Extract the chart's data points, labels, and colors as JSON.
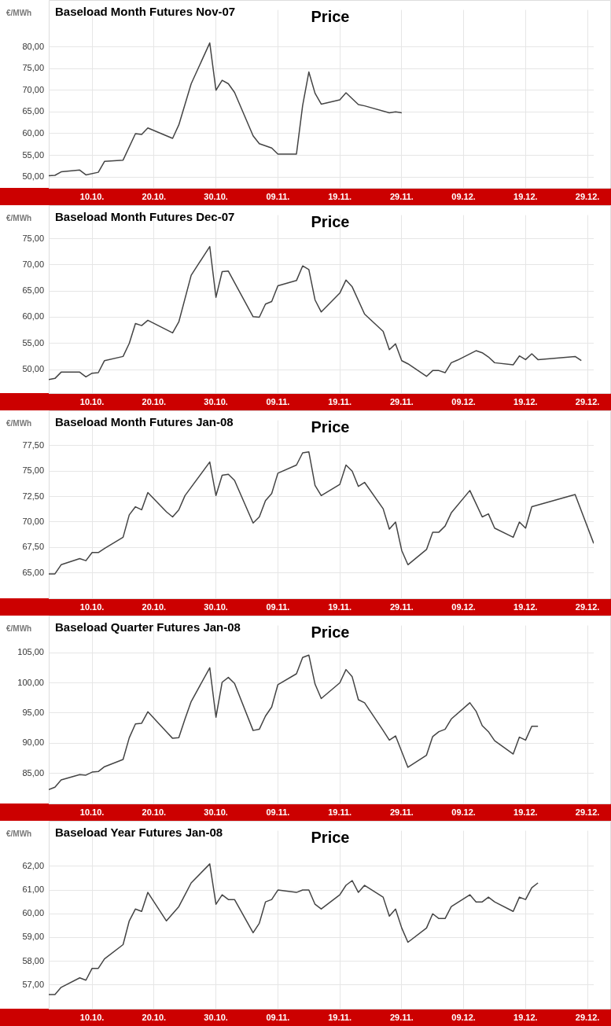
{
  "chart_data": [
    {
      "type": "line",
      "title": "Baseload Month Futures Nov-07",
      "subtitle": "Price",
      "ylabel": "€/MWh",
      "color": "#444444",
      "grid": true,
      "marker": "none",
      "line_style": "solid",
      "xlim": [
        "--10-03",
        "--12-30"
      ],
      "xticks": [
        {
          "value": "--10-10",
          "label": "10.10."
        },
        {
          "value": "--10-20",
          "label": "20.10."
        },
        {
          "value": "--10-30",
          "label": "30.10."
        },
        {
          "value": "--11-09",
          "label": "09.11."
        },
        {
          "value": "--11-19",
          "label": "19.11."
        },
        {
          "value": "--11-29",
          "label": "29.11."
        },
        {
          "value": "--12-09",
          "label": "09.12."
        },
        {
          "value": "--12-19",
          "label": "19.12."
        },
        {
          "value": "--12-29",
          "label": "29.12."
        }
      ],
      "ylim": [
        47.5,
        88.5
      ],
      "yticks": [
        {
          "value": 50,
          "label": "50,00"
        },
        {
          "value": 55,
          "label": "55,00"
        },
        {
          "value": 60,
          "label": "60,00"
        },
        {
          "value": 65,
          "label": "65,00"
        },
        {
          "value": 70,
          "label": "70,00"
        },
        {
          "value": 75,
          "label": "75,00"
        },
        {
          "value": 80,
          "label": "80,00"
        }
      ],
      "x": [
        "--10-03",
        "--10-04",
        "--10-05",
        "--10-08",
        "--10-09",
        "--10-11",
        "--10-12",
        "--10-15",
        "--10-17",
        "--10-18",
        "--10-19",
        "--10-23",
        "--10-24",
        "--10-26",
        "--10-29",
        "--10-30",
        "--10-31",
        "--11-01",
        "--11-02",
        "--11-05",
        "--11-06",
        "--11-08",
        "--11-09",
        "--11-12",
        "--11-13",
        "--11-14",
        "--11-15",
        "--11-16",
        "--11-19",
        "--11-20",
        "--11-22",
        "--11-23",
        "--11-27",
        "--11-28",
        "--11-29"
      ],
      "values": [
        50.3,
        50.4,
        51.2,
        51.6,
        50.5,
        51.1,
        53.6,
        53.9,
        60.0,
        59.8,
        61.3,
        58.9,
        62.0,
        71.5,
        80.9,
        70.0,
        72.3,
        71.5,
        69.5,
        59.5,
        57.7,
        56.7,
        55.3,
        55.3,
        66.5,
        74.2,
        69.3,
        66.8,
        67.8,
        69.4,
        66.7,
        66.4,
        64.8,
        65.0,
        64.8
      ]
    },
    {
      "type": "line",
      "title": "Baseload Month Futures Dec-07",
      "subtitle": "Price",
      "ylabel": "€/MWh",
      "color": "#444444",
      "grid": true,
      "marker": "none",
      "line_style": "solid",
      "xlim": [
        "--10-03",
        "--12-30"
      ],
      "xticks": [
        {
          "value": "--10-10",
          "label": "10.10."
        },
        {
          "value": "--10-20",
          "label": "20.10."
        },
        {
          "value": "--10-30",
          "label": "30.10."
        },
        {
          "value": "--11-09",
          "label": "09.11."
        },
        {
          "value": "--11-19",
          "label": "19.11."
        },
        {
          "value": "--11-29",
          "label": "29.11."
        },
        {
          "value": "--12-09",
          "label": "09.12."
        },
        {
          "value": "--12-19",
          "label": "19.12."
        },
        {
          "value": "--12-29",
          "label": "29.12."
        }
      ],
      "ylim": [
        45.5,
        79.5
      ],
      "yticks": [
        {
          "value": 50,
          "label": "50,00"
        },
        {
          "value": 55,
          "label": "55,00"
        },
        {
          "value": 60,
          "label": "60,00"
        },
        {
          "value": 65,
          "label": "65,00"
        },
        {
          "value": 70,
          "label": "70,00"
        },
        {
          "value": 75,
          "label": "75,00"
        }
      ],
      "x": [
        "--10-03",
        "--10-04",
        "--10-05",
        "--10-08",
        "--10-09",
        "--10-10",
        "--10-11",
        "--10-12",
        "--10-15",
        "--10-16",
        "--10-17",
        "--10-18",
        "--10-19",
        "--10-23",
        "--10-24",
        "--10-26",
        "--10-29",
        "--10-30",
        "--10-31",
        "--11-01",
        "--11-05",
        "--11-06",
        "--11-07",
        "--11-08",
        "--11-09",
        "--11-12",
        "--11-13",
        "--11-14",
        "--11-15",
        "--11-16",
        "--11-19",
        "--11-20",
        "--11-21",
        "--11-23",
        "--11-26",
        "--11-27",
        "--11-28",
        "--11-29",
        "--11-30",
        "--12-03",
        "--12-04",
        "--12-05",
        "--12-06",
        "--12-07",
        "--12-08",
        "--12-11",
        "--12-12",
        "--12-13",
        "--12-14",
        "--12-17",
        "--12-18",
        "--12-19",
        "--12-20",
        "--12-21",
        "--12-27",
        "--12-28"
      ],
      "values": [
        48.1,
        48.3,
        49.5,
        49.5,
        48.6,
        49.3,
        49.4,
        51.7,
        52.5,
        55.0,
        58.8,
        58.4,
        59.4,
        57.0,
        59.1,
        68.0,
        73.5,
        63.8,
        68.7,
        68.8,
        60.1,
        60.0,
        62.5,
        63.0,
        66.0,
        67.0,
        69.8,
        69.1,
        63.3,
        61.0,
        64.6,
        67.1,
        65.8,
        60.6,
        57.3,
        53.8,
        54.9,
        51.7,
        51.1,
        48.7,
        49.8,
        49.8,
        49.4,
        51.3,
        51.8,
        53.6,
        53.2,
        52.4,
        51.3,
        50.9,
        52.6,
        51.9,
        53.0,
        51.9,
        52.5,
        51.7
      ]
    },
    {
      "type": "line",
      "title": "Baseload Month Futures Jan-08",
      "subtitle": "Price",
      "ylabel": "€/MWh",
      "color": "#444444",
      "grid": true,
      "marker": "none",
      "line_style": "solid",
      "xlim": [
        "--10-03",
        "--12-30"
      ],
      "xticks": [
        {
          "value": "--10-10",
          "label": "10.10."
        },
        {
          "value": "--10-20",
          "label": "20.10."
        },
        {
          "value": "--10-30",
          "label": "30.10."
        },
        {
          "value": "--11-09",
          "label": "09.11."
        },
        {
          "value": "--11-19",
          "label": "19.11."
        },
        {
          "value": "--11-29",
          "label": "29.11."
        },
        {
          "value": "--12-09",
          "label": "09.12."
        },
        {
          "value": "--12-19",
          "label": "19.12."
        },
        {
          "value": "--12-29",
          "label": "29.12."
        }
      ],
      "ylim": [
        62.5,
        80
      ],
      "yticks": [
        {
          "value": 65,
          "label": "65,00"
        },
        {
          "value": 67.5,
          "label": "67,50"
        },
        {
          "value": 70,
          "label": "70,00"
        },
        {
          "value": 72.5,
          "label": "72,50"
        },
        {
          "value": 75,
          "label": "75,00"
        },
        {
          "value": 77.5,
          "label": "77,50"
        }
      ],
      "x": [
        "--10-03",
        "--10-04",
        "--10-05",
        "--10-08",
        "--10-09",
        "--10-10",
        "--10-11",
        "--10-12",
        "--10-15",
        "--10-16",
        "--10-17",
        "--10-18",
        "--10-19",
        "--10-22",
        "--10-23",
        "--10-24",
        "--10-25",
        "--10-29",
        "--10-30",
        "--10-31",
        "--11-01",
        "--11-02",
        "--11-05",
        "--11-06",
        "--11-07",
        "--11-08",
        "--11-09",
        "--11-12",
        "--11-13",
        "--11-14",
        "--11-15",
        "--11-16",
        "--11-19",
        "--11-20",
        "--11-21",
        "--11-22",
        "--11-23",
        "--11-26",
        "--11-27",
        "--11-28",
        "--11-29",
        "--11-30",
        "--12-03",
        "--12-04",
        "--12-05",
        "--12-06",
        "--12-07",
        "--12-10",
        "--12-11",
        "--12-12",
        "--12-13",
        "--12-14",
        "--12-17",
        "--12-18",
        "--12-19",
        "--12-20",
        "--12-27",
        "--12-30"
      ],
      "values": [
        64.9,
        64.9,
        65.8,
        66.4,
        66.2,
        67.0,
        67.0,
        67.4,
        68.5,
        70.7,
        71.5,
        71.2,
        72.9,
        71.0,
        70.5,
        71.2,
        72.6,
        75.9,
        72.6,
        74.6,
        74.7,
        74.1,
        69.9,
        70.5,
        72.1,
        72.8,
        74.8,
        75.6,
        76.8,
        76.9,
        73.6,
        72.6,
        73.7,
        75.6,
        75.0,
        73.5,
        73.9,
        71.3,
        69.3,
        70.0,
        67.2,
        65.8,
        67.3,
        69.0,
        69.0,
        69.6,
        70.9,
        73.1,
        71.8,
        70.5,
        70.8,
        69.4,
        68.5,
        70.0,
        69.4,
        71.5,
        72.7,
        67.9
      ]
    },
    {
      "type": "line",
      "title": "Baseload Quarter Futures Jan-08",
      "subtitle": "Price",
      "ylabel": "€/MWh",
      "color": "#444444",
      "grid": true,
      "marker": "none",
      "line_style": "solid",
      "xlim": [
        "--10-03",
        "--12-30"
      ],
      "xticks": [
        {
          "value": "--10-10",
          "label": "10.10."
        },
        {
          "value": "--10-20",
          "label": "20.10."
        },
        {
          "value": "--10-30",
          "label": "30.10."
        },
        {
          "value": "--11-09",
          "label": "09.11."
        },
        {
          "value": "--11-19",
          "label": "19.11."
        },
        {
          "value": "--11-29",
          "label": "29.11."
        },
        {
          "value": "--12-09",
          "label": "09.12."
        },
        {
          "value": "--12-19",
          "label": "19.12."
        },
        {
          "value": "--12-29",
          "label": "29.12."
        }
      ],
      "ylim": [
        80,
        109.5
      ],
      "yticks": [
        {
          "value": 85,
          "label": "85,00"
        },
        {
          "value": 90,
          "label": "90,00"
        },
        {
          "value": 95,
          "label": "95,00"
        },
        {
          "value": 100,
          "label": "100,00"
        },
        {
          "value": 105,
          "label": "105,00"
        }
      ],
      "x": [
        "--10-03",
        "--10-04",
        "--10-05",
        "--10-08",
        "--10-09",
        "--10-10",
        "--10-11",
        "--10-12",
        "--10-15",
        "--10-16",
        "--10-17",
        "--10-18",
        "--10-19",
        "--10-22",
        "--10-23",
        "--10-24",
        "--10-25",
        "--10-26",
        "--10-29",
        "--10-30",
        "--10-31",
        "--11-01",
        "--11-02",
        "--11-05",
        "--11-06",
        "--11-07",
        "--11-08",
        "--11-09",
        "--11-12",
        "--11-13",
        "--11-14",
        "--11-15",
        "--11-16",
        "--11-19",
        "--11-20",
        "--11-21",
        "--11-22",
        "--11-23",
        "--11-26",
        "--11-27",
        "--11-28",
        "--11-30",
        "--12-03",
        "--12-04",
        "--12-05",
        "--12-06",
        "--12-07",
        "--12-10",
        "--12-11",
        "--12-12",
        "--12-13",
        "--12-14",
        "--12-17",
        "--12-18",
        "--12-19",
        "--12-20",
        "--12-21"
      ],
      "values": [
        82.3,
        82.7,
        83.9,
        84.8,
        84.7,
        85.2,
        85.3,
        86.1,
        87.3,
        90.9,
        93.2,
        93.3,
        95.2,
        91.9,
        90.8,
        90.9,
        94.0,
        96.9,
        102.5,
        94.3,
        100.1,
        100.9,
        99.9,
        92.1,
        92.3,
        94.5,
        96.0,
        99.7,
        101.5,
        104.2,
        104.6,
        99.8,
        97.4,
        100.0,
        102.2,
        101.0,
        97.2,
        96.7,
        92.1,
        90.5,
        91.2,
        86.0,
        88.0,
        91.1,
        91.9,
        92.3,
        94.0,
        96.7,
        95.3,
        92.9,
        91.9,
        90.4,
        88.2,
        91.0,
        90.5,
        92.8,
        92.8
      ]
    },
    {
      "type": "line",
      "title": "Baseload Year Futures Jan-08",
      "subtitle": "Price",
      "ylabel": "€/MWh",
      "color": "#444444",
      "grid": true,
      "marker": "none",
      "line_style": "solid",
      "xlim": [
        "--10-03",
        "--12-30"
      ],
      "xticks": [
        {
          "value": "--10-10",
          "label": "10.10."
        },
        {
          "value": "--10-20",
          "label": "20.10."
        },
        {
          "value": "--10-30",
          "label": "30.10."
        },
        {
          "value": "--11-09",
          "label": "09.11."
        },
        {
          "value": "--11-19",
          "label": "19.11."
        },
        {
          "value": "--11-29",
          "label": "29.11."
        },
        {
          "value": "--12-09",
          "label": "09.12."
        },
        {
          "value": "--12-19",
          "label": "19.12."
        },
        {
          "value": "--12-29",
          "label": "29.12."
        }
      ],
      "ylim": [
        56,
        63.5
      ],
      "yticks": [
        {
          "value": 57,
          "label": "57,00"
        },
        {
          "value": 58,
          "label": "58,00"
        },
        {
          "value": 59,
          "label": "59,00"
        },
        {
          "value": 60,
          "label": "60,00"
        },
        {
          "value": 61,
          "label": "61,00"
        },
        {
          "value": 62,
          "label": "62,00"
        }
      ],
      "x": [
        "--10-03",
        "--10-04",
        "--10-05",
        "--10-08",
        "--10-09",
        "--10-10",
        "--10-11",
        "--10-12",
        "--10-15",
        "--10-16",
        "--10-17",
        "--10-18",
        "--10-19",
        "--10-22",
        "--10-24",
        "--10-25",
        "--10-26",
        "--10-29",
        "--10-30",
        "--10-31",
        "--11-01",
        "--11-02",
        "--11-05",
        "--11-06",
        "--11-07",
        "--11-08",
        "--11-09",
        "--11-12",
        "--11-13",
        "--11-14",
        "--11-15",
        "--11-16",
        "--11-19",
        "--11-20",
        "--11-21",
        "--11-22",
        "--11-23",
        "--11-26",
        "--11-27",
        "--11-28",
        "--11-29",
        "--11-30",
        "--12-03",
        "--12-04",
        "--12-05",
        "--12-06",
        "--12-07",
        "--12-10",
        "--12-11",
        "--12-12",
        "--12-13",
        "--12-14",
        "--12-17",
        "--12-18",
        "--12-19",
        "--12-20",
        "--12-21"
      ],
      "values": [
        56.6,
        56.6,
        56.9,
        57.3,
        57.2,
        57.7,
        57.7,
        58.1,
        58.7,
        59.7,
        60.2,
        60.1,
        60.9,
        59.7,
        60.3,
        60.8,
        61.3,
        62.1,
        60.4,
        60.8,
        60.6,
        60.6,
        59.2,
        59.6,
        60.5,
        60.6,
        61.0,
        60.9,
        61.0,
        61.0,
        60.4,
        60.2,
        60.8,
        61.2,
        61.4,
        60.9,
        61.2,
        60.7,
        59.9,
        60.2,
        59.4,
        58.8,
        59.4,
        60.0,
        59.8,
        59.8,
        60.3,
        60.8,
        60.5,
        60.5,
        60.7,
        60.5,
        60.1,
        60.7,
        60.6,
        61.1,
        61.3
      ]
    }
  ]
}
